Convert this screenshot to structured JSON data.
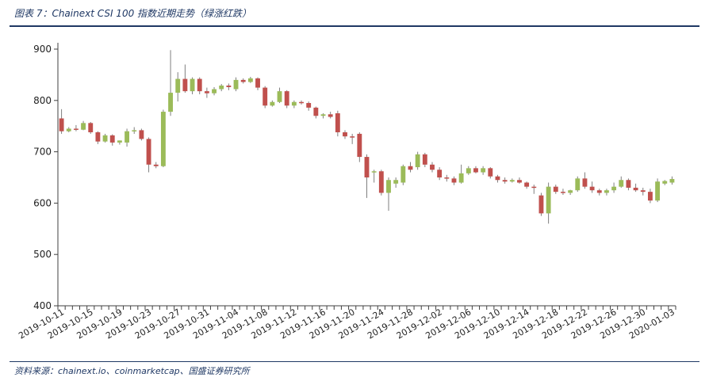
{
  "header": {
    "title": "图表 7：Chainext CSI 100 指数近期走势（绿涨红跌）"
  },
  "footer": {
    "source": "资料来源：chainext.io、coinmarketcap、国盛证券研究所"
  },
  "colors": {
    "up": "#9bbb59",
    "down": "#c0504d",
    "wick": "#7f7f7f",
    "rule": "#1f3864",
    "axis": "#404040"
  },
  "chart_data": {
    "type": "candlestick",
    "title": "",
    "xlabel": "",
    "ylabel": "",
    "ylim": [
      400,
      900
    ],
    "yticks": [
      400,
      500,
      600,
      700,
      800,
      900
    ],
    "grid": false,
    "legend": "none",
    "x_tick_labels": [
      "2019-10-11",
      "2019-10-15",
      "2019-10-19",
      "2019-10-23",
      "2019-10-27",
      "2019-10-31",
      "2019-11-04",
      "2019-11-08",
      "2019-11-12",
      "2019-11-16",
      "2019-11-20",
      "2019-11-24",
      "2019-11-28",
      "2019-12-02",
      "2019-12-06",
      "2019-12-10",
      "2019-12-14",
      "2019-12-18",
      "2019-12-22",
      "2019-12-26",
      "2019-12-30",
      "2020-01-03"
    ],
    "candles": [
      {
        "date": "2019-10-11",
        "open": 765,
        "high": 783,
        "low": 735,
        "close": 740
      },
      {
        "date": "2019-10-12",
        "open": 740,
        "high": 748,
        "low": 738,
        "close": 745
      },
      {
        "date": "2019-10-13",
        "open": 745,
        "high": 752,
        "low": 740,
        "close": 743
      },
      {
        "date": "2019-10-14",
        "open": 743,
        "high": 760,
        "low": 742,
        "close": 756
      },
      {
        "date": "2019-10-15",
        "open": 756,
        "high": 758,
        "low": 735,
        "close": 738
      },
      {
        "date": "2019-10-16",
        "open": 738,
        "high": 740,
        "low": 715,
        "close": 720
      },
      {
        "date": "2019-10-17",
        "open": 720,
        "high": 735,
        "low": 718,
        "close": 732
      },
      {
        "date": "2019-10-18",
        "open": 732,
        "high": 734,
        "low": 712,
        "close": 718
      },
      {
        "date": "2019-10-19",
        "open": 718,
        "high": 722,
        "low": 714,
        "close": 722
      },
      {
        "date": "2019-10-20",
        "open": 718,
        "high": 745,
        "low": 710,
        "close": 740
      },
      {
        "date": "2019-10-21",
        "open": 740,
        "high": 748,
        "low": 735,
        "close": 742
      },
      {
        "date": "2019-10-22",
        "open": 742,
        "high": 745,
        "low": 722,
        "close": 725
      },
      {
        "date": "2019-10-23",
        "open": 725,
        "high": 728,
        "low": 660,
        "close": 675
      },
      {
        "date": "2019-10-24",
        "open": 675,
        "high": 680,
        "low": 668,
        "close": 672
      },
      {
        "date": "2019-10-25",
        "open": 672,
        "high": 782,
        "low": 670,
        "close": 778
      },
      {
        "date": "2019-10-26",
        "open": 778,
        "high": 898,
        "low": 770,
        "close": 815
      },
      {
        "date": "2019-10-27",
        "open": 815,
        "high": 855,
        "low": 798,
        "close": 842
      },
      {
        "date": "2019-10-28",
        "open": 842,
        "high": 870,
        "low": 815,
        "close": 818
      },
      {
        "date": "2019-10-29",
        "open": 818,
        "high": 845,
        "low": 812,
        "close": 842
      },
      {
        "date": "2019-10-30",
        "open": 842,
        "high": 845,
        "low": 812,
        "close": 818
      },
      {
        "date": "2019-10-31",
        "open": 818,
        "high": 825,
        "low": 805,
        "close": 814
      },
      {
        "date": "2019-11-01",
        "open": 814,
        "high": 826,
        "low": 810,
        "close": 822
      },
      {
        "date": "2019-11-02",
        "open": 822,
        "high": 832,
        "low": 818,
        "close": 829
      },
      {
        "date": "2019-11-03",
        "open": 829,
        "high": 833,
        "low": 820,
        "close": 826
      },
      {
        "date": "2019-11-04",
        "open": 822,
        "high": 845,
        "low": 818,
        "close": 840
      },
      {
        "date": "2019-11-05",
        "open": 840,
        "high": 843,
        "low": 833,
        "close": 836
      },
      {
        "date": "2019-11-06",
        "open": 836,
        "high": 846,
        "low": 834,
        "close": 843
      },
      {
        "date": "2019-11-07",
        "open": 843,
        "high": 845,
        "low": 820,
        "close": 825
      },
      {
        "date": "2019-11-08",
        "open": 825,
        "high": 828,
        "low": 785,
        "close": 790
      },
      {
        "date": "2019-11-09",
        "open": 790,
        "high": 800,
        "low": 788,
        "close": 797
      },
      {
        "date": "2019-11-10",
        "open": 797,
        "high": 825,
        "low": 795,
        "close": 818
      },
      {
        "date": "2019-11-11",
        "open": 818,
        "high": 820,
        "low": 785,
        "close": 790
      },
      {
        "date": "2019-11-12",
        "open": 790,
        "high": 800,
        "low": 785,
        "close": 797
      },
      {
        "date": "2019-11-13",
        "open": 797,
        "high": 800,
        "low": 792,
        "close": 795
      },
      {
        "date": "2019-11-14",
        "open": 795,
        "high": 798,
        "low": 780,
        "close": 786
      },
      {
        "date": "2019-11-15",
        "open": 786,
        "high": 788,
        "low": 765,
        "close": 770
      },
      {
        "date": "2019-11-16",
        "open": 770,
        "high": 775,
        "low": 765,
        "close": 773
      },
      {
        "date": "2019-11-17",
        "open": 773,
        "high": 778,
        "low": 765,
        "close": 768
      },
      {
        "date": "2019-11-18",
        "open": 775,
        "high": 780,
        "low": 730,
        "close": 738
      },
      {
        "date": "2019-11-19",
        "open": 738,
        "high": 742,
        "low": 725,
        "close": 730
      },
      {
        "date": "2019-11-20",
        "open": 730,
        "high": 735,
        "low": 715,
        "close": 728
      },
      {
        "date": "2019-11-21",
        "open": 735,
        "high": 738,
        "low": 680,
        "close": 690
      },
      {
        "date": "2019-11-22",
        "open": 690,
        "high": 695,
        "low": 610,
        "close": 650
      },
      {
        "date": "2019-11-23",
        "open": 660,
        "high": 665,
        "low": 640,
        "close": 662
      },
      {
        "date": "2019-11-24",
        "open": 662,
        "high": 665,
        "low": 615,
        "close": 620
      },
      {
        "date": "2019-11-25",
        "open": 620,
        "high": 650,
        "low": 585,
        "close": 645
      },
      {
        "date": "2019-11-26",
        "open": 638,
        "high": 650,
        "low": 630,
        "close": 645
      },
      {
        "date": "2019-11-27",
        "open": 640,
        "high": 675,
        "low": 635,
        "close": 672
      },
      {
        "date": "2019-11-28",
        "open": 672,
        "high": 680,
        "low": 660,
        "close": 665
      },
      {
        "date": "2019-11-29",
        "open": 670,
        "high": 700,
        "low": 665,
        "close": 695
      },
      {
        "date": "2019-11-30",
        "open": 695,
        "high": 698,
        "low": 670,
        "close": 675
      },
      {
        "date": "2019-12-01",
        "open": 675,
        "high": 680,
        "low": 660,
        "close": 665
      },
      {
        "date": "2019-12-02",
        "open": 665,
        "high": 670,
        "low": 645,
        "close": 650
      },
      {
        "date": "2019-12-03",
        "open": 650,
        "high": 655,
        "low": 642,
        "close": 648
      },
      {
        "date": "2019-12-04",
        "open": 648,
        "high": 652,
        "low": 635,
        "close": 640
      },
      {
        "date": "2019-12-05",
        "open": 640,
        "high": 675,
        "low": 638,
        "close": 658
      },
      {
        "date": "2019-12-06",
        "open": 658,
        "high": 672,
        "low": 655,
        "close": 668
      },
      {
        "date": "2019-12-07",
        "open": 668,
        "high": 672,
        "low": 658,
        "close": 660
      },
      {
        "date": "2019-12-08",
        "open": 660,
        "high": 672,
        "low": 655,
        "close": 668
      },
      {
        "date": "2019-12-09",
        "open": 668,
        "high": 670,
        "low": 648,
        "close": 652
      },
      {
        "date": "2019-12-10",
        "open": 652,
        "high": 655,
        "low": 640,
        "close": 645
      },
      {
        "date": "2019-12-11",
        "open": 645,
        "high": 650,
        "low": 638,
        "close": 642
      },
      {
        "date": "2019-12-12",
        "open": 642,
        "high": 648,
        "low": 640,
        "close": 645
      },
      {
        "date": "2019-12-13",
        "open": 645,
        "high": 650,
        "low": 638,
        "close": 640
      },
      {
        "date": "2019-12-14",
        "open": 640,
        "high": 642,
        "low": 628,
        "close": 632
      },
      {
        "date": "2019-12-15",
        "open": 632,
        "high": 636,
        "low": 618,
        "close": 630
      },
      {
        "date": "2019-12-16",
        "open": 615,
        "high": 620,
        "low": 575,
        "close": 580
      },
      {
        "date": "2019-12-17",
        "open": 580,
        "high": 640,
        "low": 560,
        "close": 632
      },
      {
        "date": "2019-12-18",
        "open": 632,
        "high": 636,
        "low": 618,
        "close": 622
      },
      {
        "date": "2019-12-19",
        "open": 622,
        "high": 628,
        "low": 616,
        "close": 620
      },
      {
        "date": "2019-12-20",
        "open": 620,
        "high": 626,
        "low": 616,
        "close": 625
      },
      {
        "date": "2019-12-21",
        "open": 625,
        "high": 652,
        "low": 622,
        "close": 648
      },
      {
        "date": "2019-12-22",
        "open": 648,
        "high": 660,
        "low": 628,
        "close": 632
      },
      {
        "date": "2019-12-23",
        "open": 632,
        "high": 642,
        "low": 620,
        "close": 625
      },
      {
        "date": "2019-12-24",
        "open": 625,
        "high": 628,
        "low": 615,
        "close": 620
      },
      {
        "date": "2019-12-25",
        "open": 620,
        "high": 628,
        "low": 615,
        "close": 625
      },
      {
        "date": "2019-12-26",
        "open": 625,
        "high": 640,
        "low": 620,
        "close": 632
      },
      {
        "date": "2019-12-27",
        "open": 632,
        "high": 652,
        "low": 630,
        "close": 645
      },
      {
        "date": "2019-12-28",
        "open": 645,
        "high": 648,
        "low": 625,
        "close": 630
      },
      {
        "date": "2019-12-29",
        "open": 630,
        "high": 638,
        "low": 622,
        "close": 625
      },
      {
        "date": "2019-12-30",
        "open": 625,
        "high": 630,
        "low": 615,
        "close": 622
      },
      {
        "date": "2019-12-31",
        "open": 622,
        "high": 628,
        "low": 600,
        "close": 605
      },
      {
        "date": "2020-01-01",
        "open": 605,
        "high": 648,
        "low": 602,
        "close": 642
      },
      {
        "date": "2020-01-02",
        "open": 638,
        "high": 645,
        "low": 635,
        "close": 643
      },
      {
        "date": "2020-01-03",
        "open": 640,
        "high": 652,
        "low": 636,
        "close": 647
      }
    ]
  }
}
